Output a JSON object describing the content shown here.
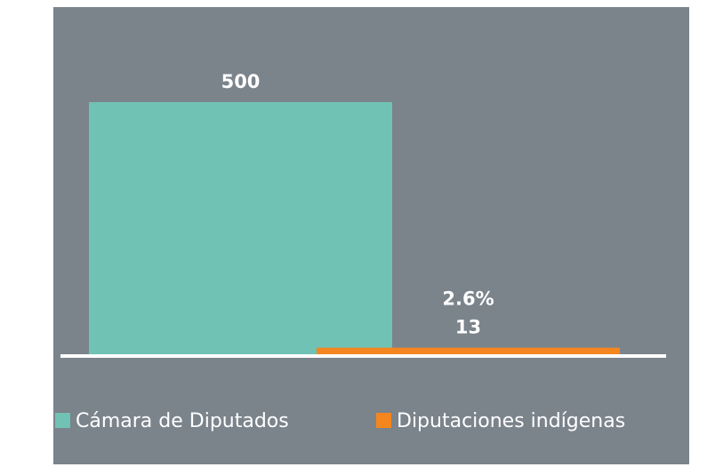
{
  "chart_data": {
    "type": "bar",
    "series": [
      {
        "name": "Cámara de Diputados",
        "color": "#70c2b4",
        "values": [
          500
        ]
      },
      {
        "name": "Diputaciones indígenas",
        "color": "#f5861f",
        "values": [
          13
        ]
      }
    ],
    "annotations": [
      "2.6%"
    ]
  }
}
